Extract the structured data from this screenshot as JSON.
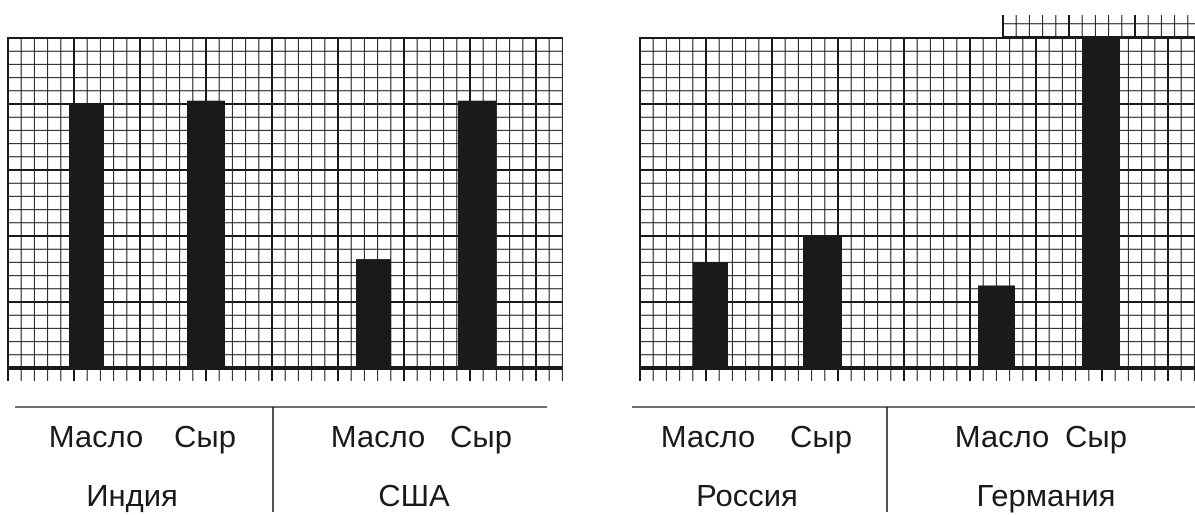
{
  "chart_data": [
    {
      "type": "bar",
      "groups": [
        "Индия",
        "США"
      ],
      "categories": [
        "Масло",
        "Сыр",
        "Масло",
        "Сыр"
      ],
      "values": [
        4,
        4.05,
        1.65,
        4.05
      ],
      "ylim": [
        0,
        5
      ],
      "grid": true
    },
    {
      "type": "bar",
      "groups": [
        "Россия",
        "Германия"
      ],
      "categories": [
        "Масло",
        "Сыр",
        "Масло",
        "Сыр"
      ],
      "values": [
        1.6,
        2.0,
        1.25,
        5.0
      ],
      "ylim": [
        0,
        5
      ],
      "grid": true
    }
  ],
  "colors": {
    "bar": "#1a1a1a",
    "grid": "#1a1a1a",
    "label": "#1a1a1a"
  }
}
